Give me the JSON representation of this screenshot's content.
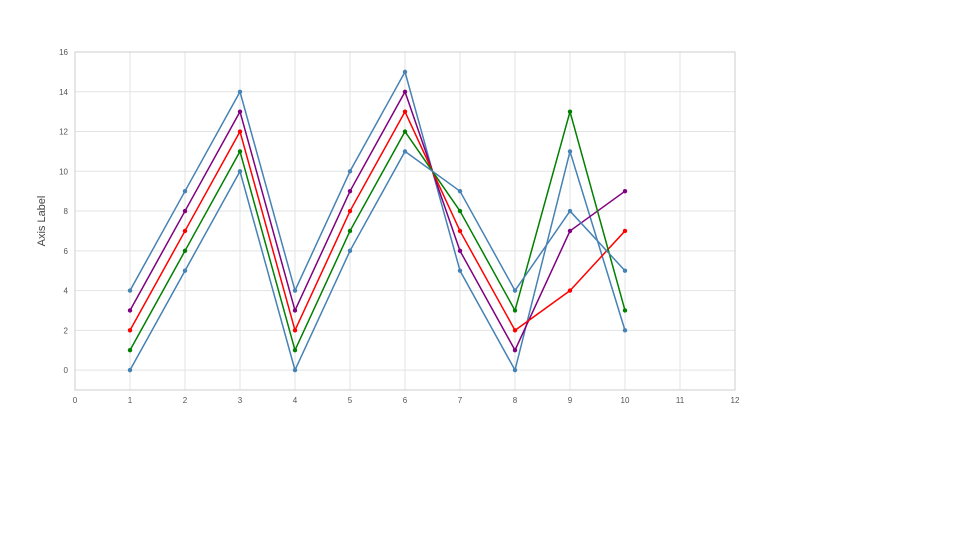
{
  "chart_data": {
    "type": "line",
    "ylabel": "Axis Label",
    "xlim": [
      0,
      12
    ],
    "ylim": [
      -1,
      16
    ],
    "x_ticks": [
      0,
      1,
      2,
      3,
      4,
      5,
      6,
      7,
      8,
      9,
      10,
      11,
      12
    ],
    "y_ticks": [
      0,
      2,
      4,
      6,
      8,
      10,
      12,
      14,
      16
    ],
    "grid": true,
    "legend": "none",
    "series": [
      {
        "color": "#4682B4",
        "x": [
          1,
          2,
          3,
          4,
          5,
          6,
          7,
          8,
          9,
          10
        ],
        "values": [
          4,
          9,
          14,
          4,
          10,
          15,
          5,
          0,
          11,
          2
        ]
      },
      {
        "color": "#800080",
        "x": [
          1,
          2,
          3,
          4,
          5,
          6,
          7,
          8,
          9,
          10
        ],
        "values": [
          3,
          8,
          13,
          3,
          9,
          14,
          6,
          1,
          7,
          9
        ]
      },
      {
        "color": "#FF0000",
        "x": [
          1,
          2,
          3,
          4,
          5,
          6,
          7,
          8,
          9,
          10
        ],
        "values": [
          2,
          7,
          12,
          2,
          8,
          13,
          7,
          2,
          4,
          7
        ]
      },
      {
        "color": "#008000",
        "x": [
          1,
          2,
          3,
          4,
          5,
          6,
          7,
          8,
          9,
          10
        ],
        "values": [
          1,
          6,
          11,
          1,
          7,
          12,
          8,
          3,
          13,
          3
        ]
      },
      {
        "color": "#4682B4",
        "x": [
          1,
          2,
          3,
          4,
          5,
          6,
          7,
          8,
          9,
          10
        ],
        "values": [
          0,
          5,
          10,
          0,
          6,
          11,
          9,
          4,
          8,
          5
        ]
      }
    ]
  }
}
